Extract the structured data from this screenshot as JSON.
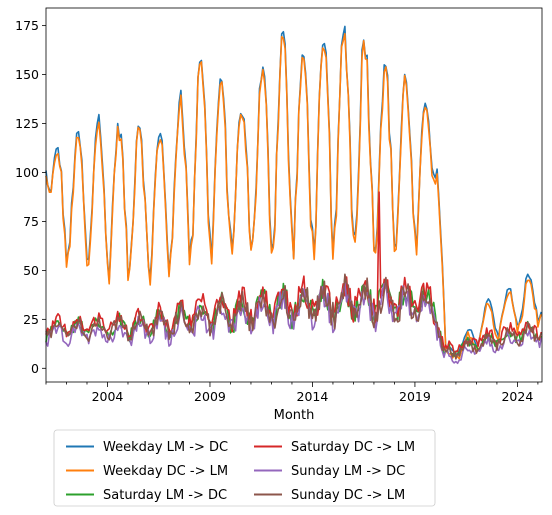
{
  "chart_data": {
    "type": "line",
    "title": "",
    "xlabel": "Month",
    "ylabel": "",
    "xlim": [
      2001.0,
      2025.2
    ],
    "ylim": [
      -7,
      184
    ],
    "x_ticks": [
      2004,
      2009,
      2014,
      2019,
      2024
    ],
    "y_ticks": [
      0,
      25,
      50,
      75,
      100,
      125,
      150,
      175
    ],
    "grid": false,
    "legend_placement": "below",
    "series": [
      {
        "name": "Weekday LM -> DC",
        "color": "#1f77b4"
      },
      {
        "name": "Weekday DC -> LM",
        "color": "#ff7f0e"
      },
      {
        "name": "Saturday LM -> DC",
        "color": "#2ca02c"
      },
      {
        "name": "Saturday DC -> LM",
        "color": "#d62728"
      },
      {
        "name": "Sunday LM -> DC",
        "color": "#9467bd"
      },
      {
        "name": "Sunday DC -> LM",
        "color": "#8c564b"
      }
    ],
    "envelopes": {
      "weekday": {
        "x": [
          2001.0,
          2001.5,
          2002.5,
          2003.5,
          2004.5,
          2005.5,
          2006.5,
          2007.5,
          2008.5,
          2009.5,
          2010.5,
          2011.5,
          2012.5,
          2013.5,
          2014.5,
          2015.5,
          2016.5,
          2017.5,
          2018.5,
          2019.5,
          2020.1,
          2020.5,
          2021.5,
          2022.5,
          2023.5,
          2024.5,
          2025.2
        ],
        "high": [
          113,
          112,
          120,
          130,
          125,
          128,
          118,
          140,
          163,
          148,
          130,
          152,
          173,
          160,
          165,
          175,
          170,
          155,
          150,
          140,
          125,
          10,
          18,
          35,
          40,
          48,
          45
        ],
        "low": [
          100,
          55,
          52,
          50,
          48,
          46,
          48,
          52,
          58,
          60,
          60,
          60,
          62,
          60,
          60,
          62,
          62,
          62,
          62,
          58,
          100,
          5,
          8,
          15,
          18,
          22,
          25
        ]
      },
      "weekend": {
        "x": [
          2001.0,
          2003,
          2005,
          2007,
          2009,
          2011,
          2013,
          2015,
          2017,
          2019,
          2020.0,
          2020.4,
          2022,
          2024,
          2025.2
        ],
        "mid": [
          18,
          19,
          20,
          22,
          26,
          28,
          31,
          33,
          33,
          32,
          30,
          6,
          11,
          16,
          17
        ],
        "amp": [
          4,
          4,
          5,
          6,
          7,
          8,
          8,
          9,
          9,
          9,
          8,
          3,
          3,
          4,
          4
        ]
      },
      "spike": {
        "x": 2017.25,
        "value": 90
      }
    }
  },
  "legend": {
    "items": [
      {
        "label": "Weekday LM -> DC",
        "color": "#1f77b4"
      },
      {
        "label": "Weekday DC -> LM",
        "color": "#ff7f0e"
      },
      {
        "label": "Saturday LM -> DC",
        "color": "#2ca02c"
      },
      {
        "label": "Saturday DC -> LM",
        "color": "#d62728"
      },
      {
        "label": "Sunday LM -> DC",
        "color": "#9467bd"
      },
      {
        "label": "Sunday DC -> LM",
        "color": "#8c564b"
      }
    ]
  }
}
